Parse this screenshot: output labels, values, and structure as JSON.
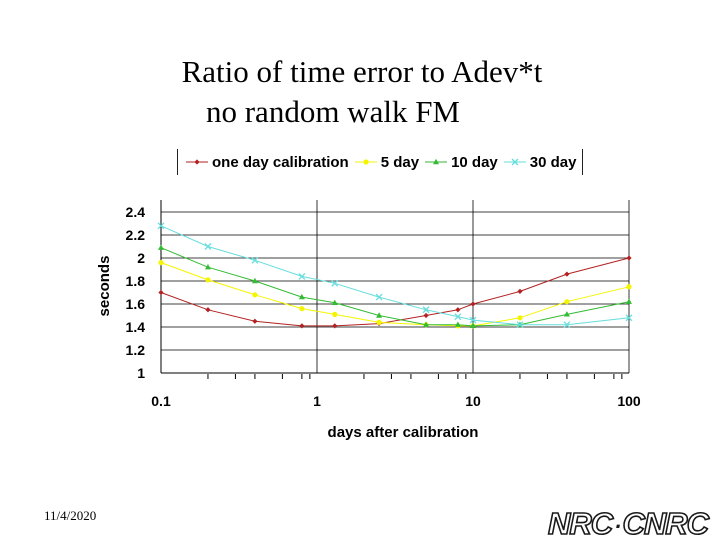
{
  "slide": {
    "title_line1": "Ratio of time error to Adev*t",
    "title_line2": "no random walk FM",
    "date": "11/4/2020",
    "logo_left": "NRC",
    "logo_sep": "·",
    "logo_right": "CNRC"
  },
  "chart_data": {
    "type": "line",
    "title": "Ratio of time error to Adev*t no random walk FM",
    "xlabel": "days after calibration",
    "ylabel": "seconds",
    "xscale": "log",
    "xlim": [
      0.1,
      100
    ],
    "ylim": [
      1,
      2.4
    ],
    "x_ticks": [
      "0.1",
      "1",
      "10",
      "100"
    ],
    "y_ticks": [
      "2.4",
      "2.2",
      "2",
      "1.8",
      "1.6",
      "1.4",
      "1.2",
      "1"
    ],
    "grid": true,
    "legend_position": "top",
    "series": [
      {
        "name": "one day calibration",
        "color": "#b22222",
        "marker": "diamond",
        "x": [
          0.1,
          0.2,
          0.4,
          0.8,
          1.3,
          2.5,
          5,
          8,
          10,
          20,
          40,
          100
        ],
        "y": [
          1.7,
          1.55,
          1.45,
          1.41,
          1.41,
          1.43,
          1.5,
          1.55,
          1.6,
          1.71,
          1.86,
          2.0
        ]
      },
      {
        "name": "5 day",
        "color": "#f5f500",
        "marker": "circle",
        "x": [
          0.1,
          0.2,
          0.4,
          0.8,
          1.3,
          2.5,
          5,
          8,
          10,
          20,
          40,
          100
        ],
        "y": [
          1.96,
          1.81,
          1.68,
          1.56,
          1.51,
          1.44,
          1.42,
          1.41,
          1.41,
          1.48,
          1.62,
          1.75
        ]
      },
      {
        "name": "10 day",
        "color": "#33bb33",
        "marker": "triangle",
        "x": [
          0.1,
          0.2,
          0.4,
          0.8,
          1.3,
          2.5,
          5,
          8,
          10,
          20,
          40,
          100
        ],
        "y": [
          2.09,
          1.92,
          1.8,
          1.66,
          1.61,
          1.5,
          1.42,
          1.42,
          1.41,
          1.42,
          1.51,
          1.62
        ]
      },
      {
        "name": "30 day",
        "color": "#66dddd",
        "marker": "x",
        "x": [
          0.1,
          0.2,
          0.4,
          0.8,
          1.3,
          2.5,
          5,
          8,
          10,
          20,
          40,
          100
        ],
        "y": [
          2.28,
          2.1,
          1.98,
          1.84,
          1.78,
          1.66,
          1.55,
          1.49,
          1.46,
          1.42,
          1.42,
          1.48
        ]
      }
    ]
  }
}
